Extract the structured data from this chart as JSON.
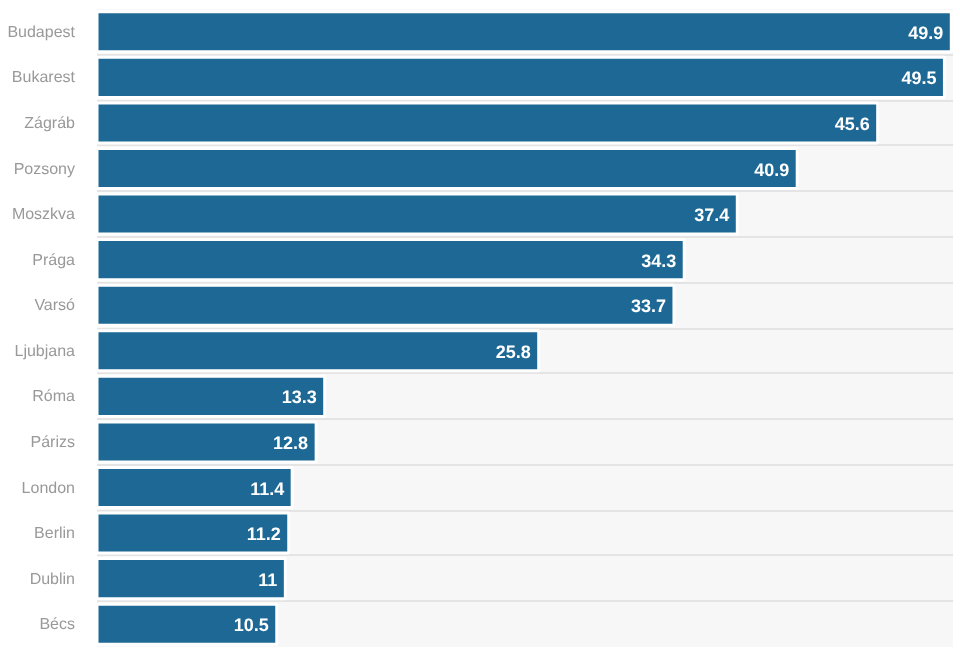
{
  "chart_data": {
    "type": "bar",
    "orientation": "horizontal",
    "categories": [
      "Budapest",
      "Bukarest",
      "Zágráb",
      "Pozsony",
      "Moszkva",
      "Prága",
      "Varsó",
      "Ljubjana",
      "Róma",
      "Párizs",
      "London",
      "Berlin",
      "Dublin",
      "Bécs"
    ],
    "values": [
      49.9,
      49.5,
      45.6,
      40.9,
      37.4,
      34.3,
      33.7,
      25.8,
      13.3,
      12.8,
      11.4,
      11.2,
      11,
      10.5
    ],
    "color": "#1d6895",
    "xlim": [
      0,
      50
    ],
    "data_labels": true,
    "grid": "y",
    "tick_labels": "y"
  }
}
